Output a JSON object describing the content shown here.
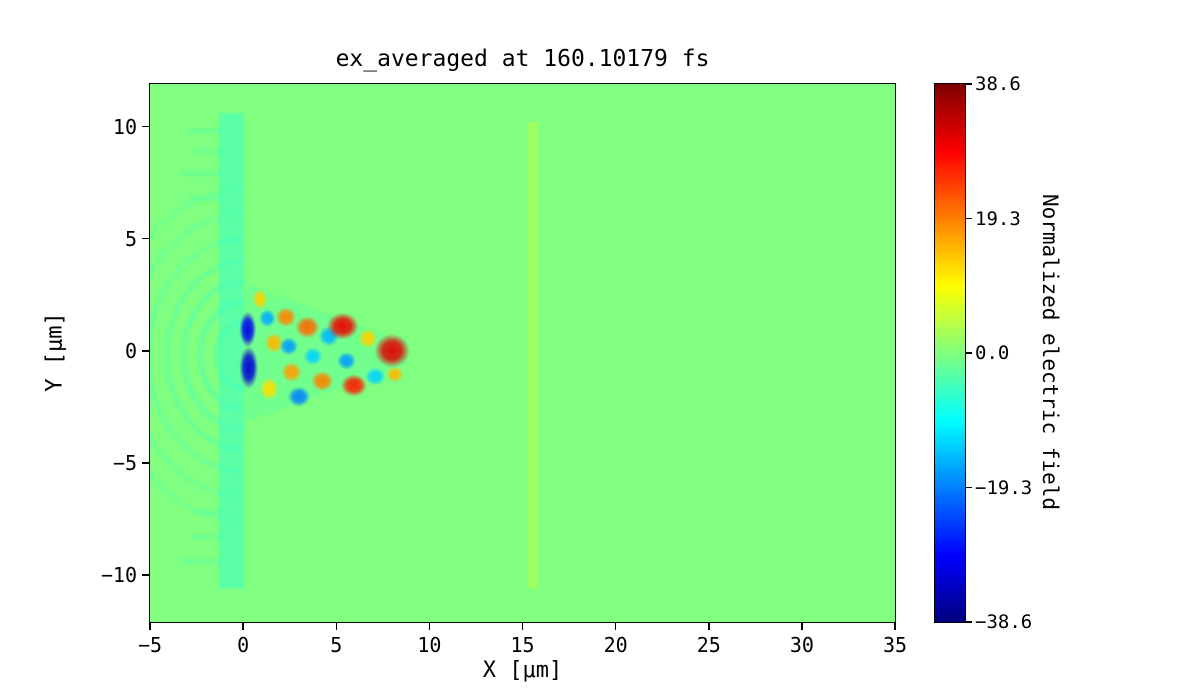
{
  "chart_data": {
    "type": "heatmap",
    "title": "ex_averaged at 160.10179 fs",
    "xlabel": "X [μm]",
    "ylabel": "Y [μm]",
    "xlim": [
      -5,
      35
    ],
    "ylim": [
      -12.1,
      11.9
    ],
    "grid": false,
    "colormap": "jet",
    "x_ticks": [
      {
        "value": -5,
        "label": "−5"
      },
      {
        "value": 0,
        "label": "0"
      },
      {
        "value": 5,
        "label": "5"
      },
      {
        "value": 10,
        "label": "10"
      },
      {
        "value": 15,
        "label": "15"
      },
      {
        "value": 20,
        "label": "20"
      },
      {
        "value": 25,
        "label": "25"
      },
      {
        "value": 30,
        "label": "30"
      },
      {
        "value": 35,
        "label": "35"
      }
    ],
    "y_ticks": [
      {
        "value": 10,
        "label": "10"
      },
      {
        "value": 5,
        "label": "5"
      },
      {
        "value": 0,
        "label": "0"
      },
      {
        "value": -5,
        "label": "−5"
      },
      {
        "value": -10,
        "label": "−10"
      }
    ],
    "colorbar": {
      "label": "Normalized electric field",
      "vmin": -38.6,
      "vmax": 38.6,
      "ticks": [
        {
          "value": 38.6,
          "label": "38.6"
        },
        {
          "value": 19.3,
          "label": "19.3"
        },
        {
          "value": 0,
          "label": "0.0"
        },
        {
          "value": -19.3,
          "label": "−19.3"
        },
        {
          "value": -38.6,
          "label": "−38.6"
        }
      ]
    },
    "field": {
      "background_value": 0.0,
      "plasma_slab": {
        "x0": -1.3,
        "x1": 0.05,
        "y0": -10.6,
        "y1": 10.6,
        "value": -5
      },
      "ripples": {
        "cx": 0.1,
        "cy": -0.2,
        "radii": [
          1.5,
          2.4,
          3.3,
          4.2,
          5.2,
          6.3,
          7.4
        ],
        "value": -6,
        "side": "left"
      },
      "streaks": [
        {
          "y": 9.8,
          "x0": -3.0,
          "x1": -1.1,
          "value": -4
        },
        {
          "y": 8.9,
          "x0": -2.6,
          "x1": -1.1,
          "value": -4
        },
        {
          "y": 7.9,
          "x0": -3.4,
          "x1": -1.1,
          "value": -4
        },
        {
          "y": 6.8,
          "x0": -2.9,
          "x1": -1.1,
          "value": -4
        },
        {
          "y": -7.2,
          "x0": -2.7,
          "x1": -1.1,
          "value": -4
        },
        {
          "y": -8.3,
          "x0": -2.8,
          "x1": -1.1,
          "value": -4
        },
        {
          "y": -9.4,
          "x0": -3.3,
          "x1": -1.1,
          "value": -4
        }
      ],
      "wake_envelope": {
        "points": [
          [
            0.1,
            3.0
          ],
          [
            3.0,
            2.1
          ],
          [
            8.8,
            0.4
          ],
          [
            8.8,
            -0.6
          ],
          [
            3.0,
            -2.3
          ],
          [
            0.1,
            -3.2
          ]
        ],
        "value": -4
      },
      "density_stripe": {
        "x0": 15.25,
        "x1": 15.85,
        "y0": -10.6,
        "y1": 10.2,
        "value": 5
      },
      "blobs": [
        {
          "x": 0.25,
          "y": 0.95,
          "rx": 0.45,
          "ry": 0.8,
          "v": -30
        },
        {
          "x": 0.3,
          "y": -0.75,
          "rx": 0.5,
          "ry": 0.95,
          "v": -32
        },
        {
          "x": 0.9,
          "y": 2.3,
          "rx": 0.4,
          "ry": 0.45,
          "v": 13
        },
        {
          "x": 1.3,
          "y": 1.45,
          "rx": 0.45,
          "ry": 0.4,
          "v": -16
        },
        {
          "x": 1.65,
          "y": 0.35,
          "rx": 0.5,
          "ry": 0.45,
          "v": 15
        },
        {
          "x": 1.4,
          "y": -1.7,
          "rx": 0.5,
          "ry": 0.5,
          "v": 12
        },
        {
          "x": 2.3,
          "y": 1.5,
          "rx": 0.55,
          "ry": 0.45,
          "v": 19
        },
        {
          "x": 2.45,
          "y": 0.2,
          "rx": 0.5,
          "ry": 0.4,
          "v": -17
        },
        {
          "x": 2.6,
          "y": -0.95,
          "rx": 0.55,
          "ry": 0.45,
          "v": 17
        },
        {
          "x": 3.0,
          "y": -2.05,
          "rx": 0.6,
          "ry": 0.45,
          "v": -19
        },
        {
          "x": 3.45,
          "y": 1.05,
          "rx": 0.65,
          "ry": 0.5,
          "v": 21
        },
        {
          "x": 3.75,
          "y": -0.25,
          "rx": 0.5,
          "ry": 0.4,
          "v": -13
        },
        {
          "x": 4.25,
          "y": -1.35,
          "rx": 0.6,
          "ry": 0.45,
          "v": 19
        },
        {
          "x": 4.6,
          "y": 0.65,
          "rx": 0.55,
          "ry": 0.45,
          "v": -15
        },
        {
          "x": 5.35,
          "y": 1.1,
          "rx": 0.85,
          "ry": 0.6,
          "v": 30
        },
        {
          "x": 5.55,
          "y": -0.45,
          "rx": 0.5,
          "ry": 0.4,
          "v": -17
        },
        {
          "x": 5.95,
          "y": -1.55,
          "rx": 0.7,
          "ry": 0.5,
          "v": 27
        },
        {
          "x": 6.7,
          "y": 0.55,
          "rx": 0.5,
          "ry": 0.45,
          "v": 13
        },
        {
          "x": 7.1,
          "y": -1.15,
          "rx": 0.55,
          "ry": 0.4,
          "v": -13
        },
        {
          "x": 8.0,
          "y": 0.0,
          "rx": 0.95,
          "ry": 0.75,
          "v": 31
        },
        {
          "x": 8.15,
          "y": -1.05,
          "rx": 0.45,
          "ry": 0.35,
          "v": 15
        }
      ]
    }
  }
}
